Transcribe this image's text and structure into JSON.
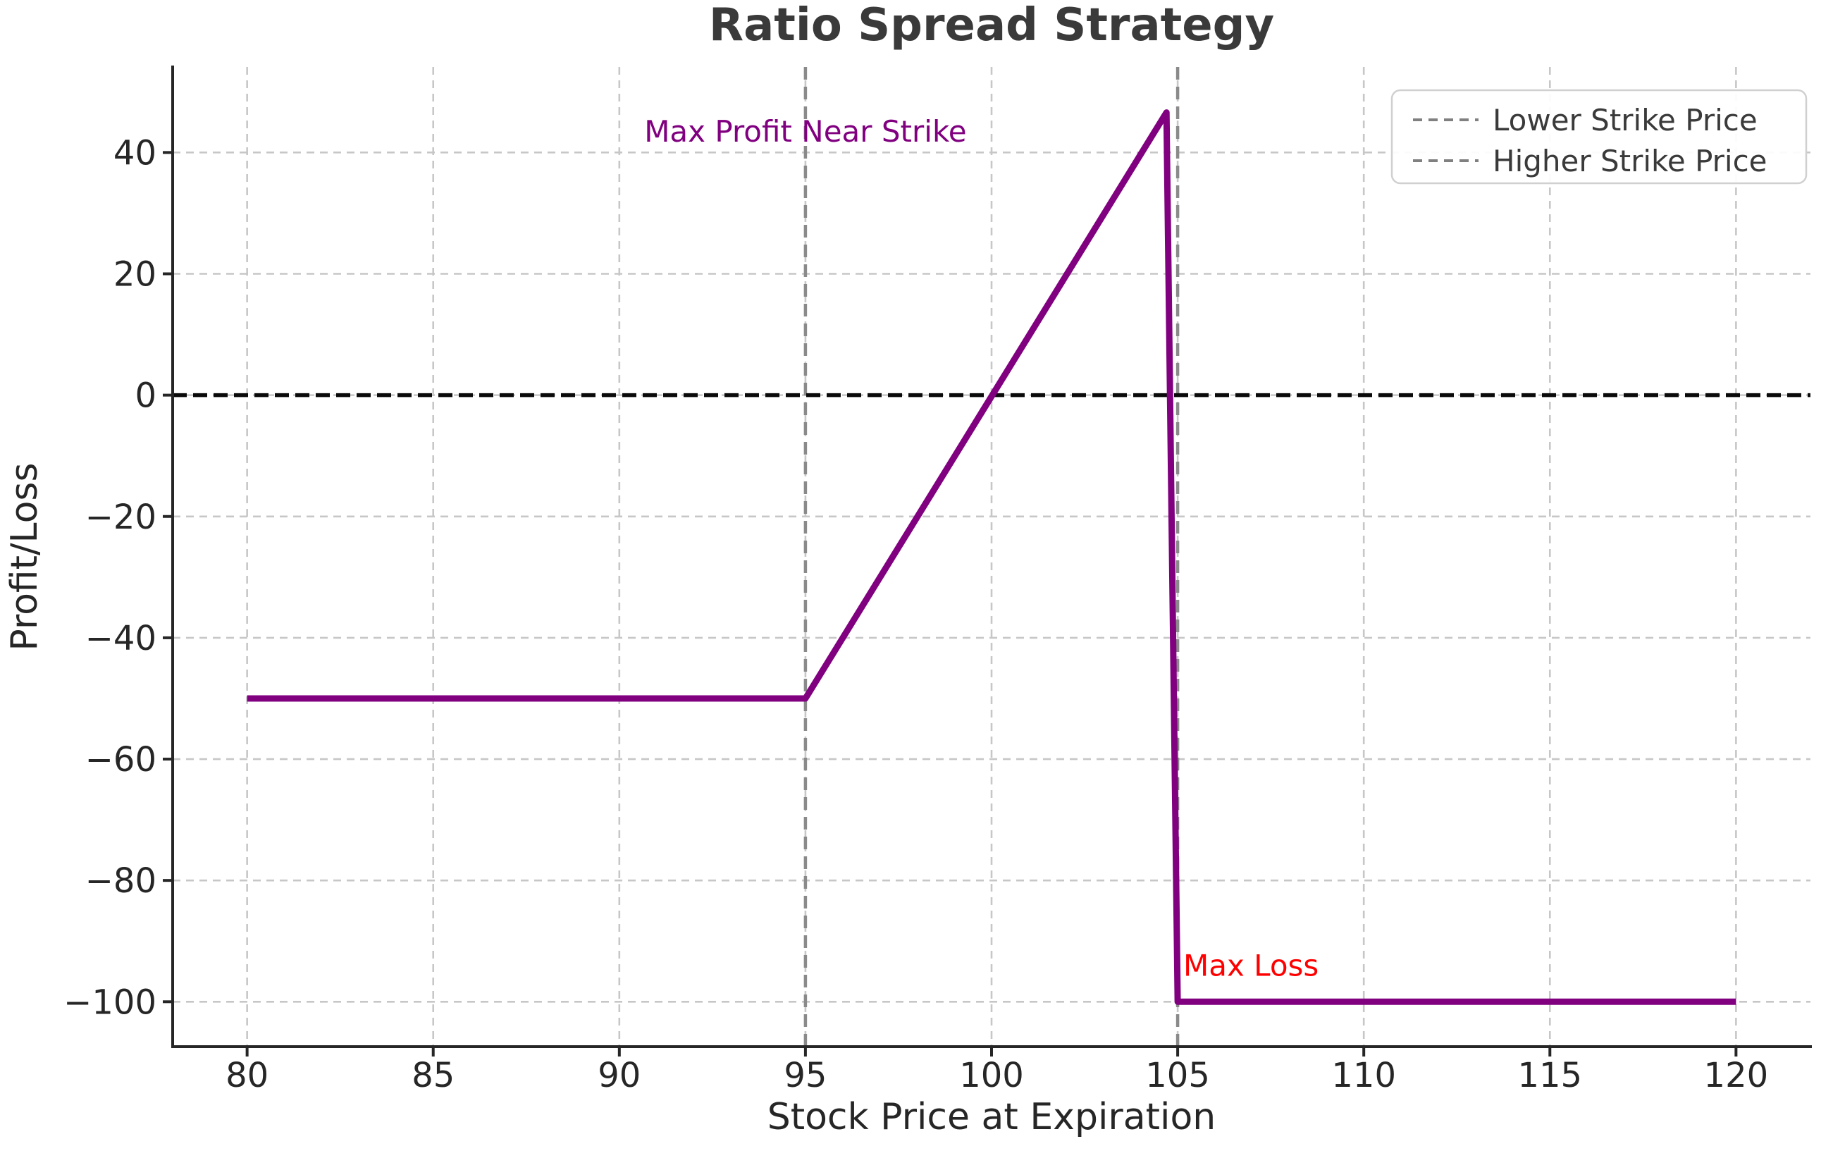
{
  "chart_data": {
    "type": "line",
    "title": "Ratio Spread Strategy",
    "xlabel": "Stock Price at Expiration",
    "ylabel": "Profit/Loss",
    "xlim": [
      78,
      122
    ],
    "ylim": [
      -107.4,
      54.1
    ],
    "xticks": [
      80,
      85,
      90,
      95,
      100,
      105,
      110,
      115,
      120
    ],
    "yticks": [
      40,
      20,
      0,
      -20,
      -40,
      -60,
      -80,
      -100
    ],
    "grid": true,
    "grid_style": "dashed",
    "series": [
      {
        "color": "#800080",
        "line_width": 9,
        "points": [
          [
            80,
            -50
          ],
          [
            95,
            -50
          ],
          [
            104.7,
            46.6
          ],
          [
            105,
            -100
          ],
          [
            120,
            -100
          ]
        ]
      }
    ],
    "reference_lines": {
      "zero_line": {
        "y": 0,
        "color": "#0a0a0a",
        "style": "dashed"
      },
      "vlines": [
        {
          "x": 95,
          "color": "#8a8a8a",
          "style": "dashed"
        },
        {
          "x": 105,
          "color": "#8a8a8a",
          "style": "dashed"
        }
      ]
    },
    "annotations": [
      {
        "text": "Max Profit Near Strike",
        "x": 95,
        "y": 43.5,
        "color": "#800080",
        "align": "center"
      },
      {
        "text": "Max Loss",
        "x": 105.15,
        "y": -94,
        "color": "#ff0000",
        "align": "left"
      }
    ],
    "legend": {
      "position": "upper right",
      "items": [
        {
          "label": "Lower Strike Price",
          "swatch_color": "#808080",
          "swatch_style": "dashed"
        },
        {
          "label": "Higher Strike Price",
          "swatch_color": "#808080",
          "swatch_style": "dashed"
        }
      ]
    },
    "colors": {
      "payoff_line": "#800080",
      "grid": "#c7c7c7",
      "spine": "#262626",
      "title_text": "#3a3a3a",
      "tick_text": "#262626",
      "background": "#ffffff"
    }
  }
}
